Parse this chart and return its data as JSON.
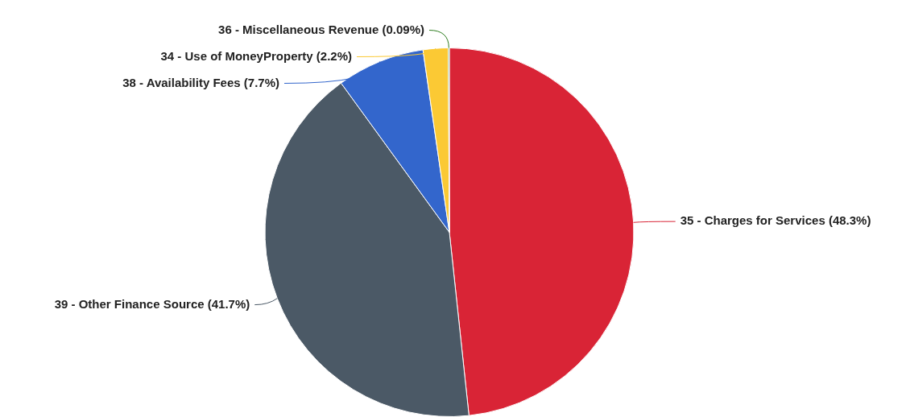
{
  "chart_data": {
    "type": "pie",
    "categories": [
      "35 - Charges for Services (48.3%)",
      "39 - Other Finance Source (41.7%)",
      "38 - Availability Fees (7.7%)",
      "34 - Use of MoneyProperty (2.2%)",
      "36 - Miscellaneous Revenue (0.09%)"
    ],
    "values": [
      48.3,
      41.7,
      7.7,
      2.2,
      0.09
    ],
    "colors": [
      "#d92436",
      "#4b5966",
      "#3366cc",
      "#fbc934",
      "#2e7d1f"
    ],
    "legend": false
  }
}
